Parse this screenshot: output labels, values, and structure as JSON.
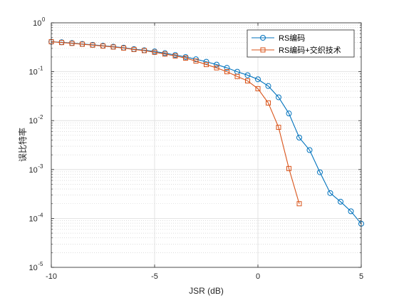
{
  "chart_data": {
    "type": "line",
    "title": "",
    "xlabel": "JSR (dB)",
    "ylabel": "误比特率",
    "xlim": [
      -10,
      5
    ],
    "ylim": [
      1e-05,
      1
    ],
    "yscale": "log",
    "grid": true,
    "legend_position": "top-right",
    "x_ticks": [
      {
        "value": -10,
        "label": "-10"
      },
      {
        "value": -5,
        "label": "-5"
      },
      {
        "value": 0,
        "label": "0"
      },
      {
        "value": 5,
        "label": "5"
      }
    ],
    "y_ticks": [
      {
        "value": 1,
        "base": "10",
        "exp": "0"
      },
      {
        "value": 0.1,
        "base": "10",
        "exp": "-1"
      },
      {
        "value": 0.01,
        "base": "10",
        "exp": "-2"
      },
      {
        "value": 0.001,
        "base": "10",
        "exp": "-3"
      },
      {
        "value": 0.0001,
        "base": "10",
        "exp": "-4"
      },
      {
        "value": 1e-05,
        "base": "10",
        "exp": "-5"
      }
    ],
    "series": [
      {
        "name": "RS编码",
        "color": "#0072BD",
        "marker": "circle",
        "x": [
          -10,
          -9.5,
          -9,
          -8.5,
          -8,
          -7.5,
          -7,
          -6.5,
          -6,
          -5.5,
          -5,
          -4.5,
          -4,
          -3.5,
          -3,
          -2.5,
          -2,
          -1.5,
          -1,
          -0.5,
          0,
          0.5,
          1,
          1.5,
          2,
          2.5,
          3,
          3.5,
          4,
          4.5,
          5
        ],
        "y": [
          0.41,
          0.4,
          0.385,
          0.37,
          0.355,
          0.34,
          0.325,
          0.31,
          0.29,
          0.275,
          0.26,
          0.24,
          0.22,
          0.2,
          0.18,
          0.16,
          0.14,
          0.12,
          0.1,
          0.085,
          0.07,
          0.051,
          0.03,
          0.014,
          0.0045,
          0.0025,
          0.00088,
          0.00033,
          0.00022,
          0.00014,
          7.8e-05
        ]
      },
      {
        "name": "RS编码+交织技术",
        "color": "#D95319",
        "marker": "square",
        "x": [
          -10,
          -9.5,
          -9,
          -8.5,
          -8,
          -7.5,
          -7,
          -6.5,
          -6,
          -5.5,
          -5,
          -4.5,
          -4,
          -3.5,
          -3,
          -2.5,
          -2,
          -1.5,
          -1,
          -0.5,
          0,
          0.5,
          1,
          1.5,
          2
        ],
        "y": [
          0.41,
          0.395,
          0.38,
          0.365,
          0.35,
          0.335,
          0.32,
          0.305,
          0.285,
          0.27,
          0.25,
          0.23,
          0.21,
          0.19,
          0.165,
          0.14,
          0.12,
          0.1,
          0.08,
          0.065,
          0.045,
          0.023,
          0.0073,
          0.00105,
          0.0002
        ]
      }
    ]
  }
}
